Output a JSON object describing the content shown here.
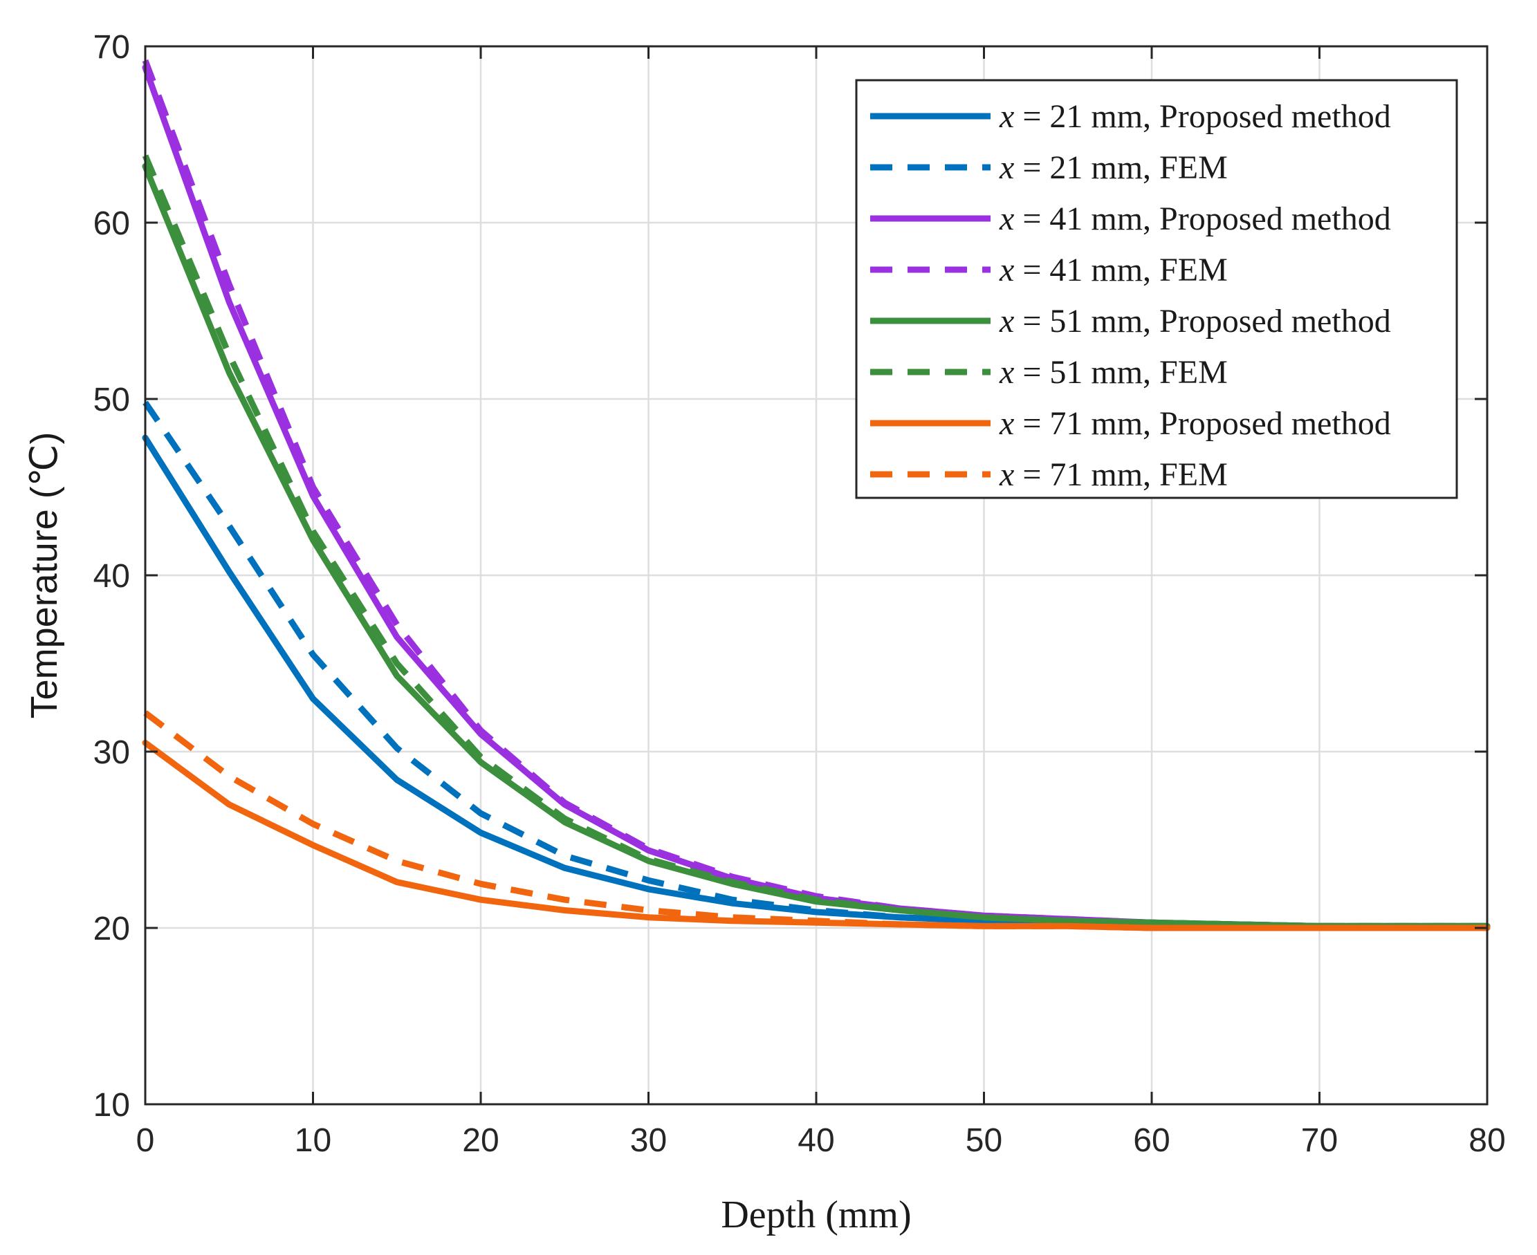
{
  "chart_data": {
    "type": "line",
    "title": "",
    "xlabel": "Depth (mm)",
    "ylabel": "Temperature (℃)",
    "xlim": [
      0,
      80
    ],
    "ylim": [
      10,
      70
    ],
    "xticks": [
      0,
      10,
      20,
      30,
      40,
      50,
      60,
      70,
      80
    ],
    "yticks": [
      10,
      20,
      30,
      40,
      50,
      60,
      70
    ],
    "grid": true,
    "legend_position": "top-right",
    "x": [
      0,
      5,
      10,
      15,
      20,
      25,
      30,
      35,
      40,
      45,
      50,
      55,
      60,
      65,
      70,
      75,
      80
    ],
    "series": [
      {
        "var": "x",
        "label": " = 21 mm, Proposed method",
        "color": "#0072BD",
        "style": "solid",
        "values": [
          47.8,
          40.2,
          33.0,
          28.4,
          25.4,
          23.4,
          22.2,
          21.4,
          20.9,
          20.6,
          20.4,
          20.3,
          20.2,
          20.1,
          20.1,
          20.1,
          20.1
        ]
      },
      {
        "var": "x",
        "label": " = 21 mm, FEM",
        "color": "#0072BD",
        "style": "dashed",
        "values": [
          49.8,
          42.8,
          35.5,
          30.2,
          26.5,
          24.1,
          22.7,
          21.6,
          21.0,
          20.6,
          20.4,
          20.3,
          20.2,
          20.1,
          20.1,
          20.1,
          20.1
        ]
      },
      {
        "var": "x",
        "label": " = 41 mm, Proposed method",
        "color": "#9B30E0",
        "style": "solid",
        "values": [
          68.8,
          55.5,
          44.5,
          36.5,
          31.0,
          27.0,
          24.4,
          22.8,
          21.7,
          21.1,
          20.7,
          20.5,
          20.3,
          20.2,
          20.1,
          20.1,
          20.1
        ]
      },
      {
        "var": "x",
        "label": " = 41 mm, FEM",
        "color": "#9B30E0",
        "style": "dashed",
        "values": [
          69.2,
          56.5,
          45.0,
          37.2,
          31.2,
          27.1,
          24.5,
          22.9,
          21.8,
          21.1,
          20.7,
          20.5,
          20.3,
          20.2,
          20.1,
          20.1,
          20.1
        ]
      },
      {
        "var": "x",
        "label": " = 51 mm, Proposed method",
        "color": "#3C8F3C",
        "style": "solid",
        "values": [
          63.2,
          51.5,
          42.0,
          34.3,
          29.4,
          26.0,
          23.8,
          22.5,
          21.5,
          21.0,
          20.6,
          20.4,
          20.3,
          20.2,
          20.1,
          20.1,
          20.1
        ]
      },
      {
        "var": "x",
        "label": " = 51 mm, FEM",
        "color": "#3C8F3C",
        "style": "dashed",
        "values": [
          63.8,
          52.5,
          42.5,
          35.0,
          29.7,
          26.2,
          23.9,
          22.6,
          21.6,
          21.0,
          20.6,
          20.4,
          20.3,
          20.2,
          20.1,
          20.1,
          20.1
        ]
      },
      {
        "var": "x",
        "label": " = 71 mm, Proposed method",
        "color": "#F2650F",
        "style": "solid",
        "values": [
          30.5,
          27.0,
          24.7,
          22.6,
          21.6,
          21.0,
          20.6,
          20.4,
          20.3,
          20.2,
          20.1,
          20.1,
          20.0,
          20.0,
          20.0,
          20.0,
          20.0
        ]
      },
      {
        "var": "x",
        "label": " = 71 mm, FEM",
        "color": "#F2650F",
        "style": "dashed",
        "values": [
          32.2,
          28.6,
          25.9,
          23.8,
          22.5,
          21.6,
          21.0,
          20.6,
          20.4,
          20.2,
          20.1,
          20.1,
          20.0,
          20.0,
          20.0,
          20.0,
          20.0
        ]
      }
    ]
  }
}
